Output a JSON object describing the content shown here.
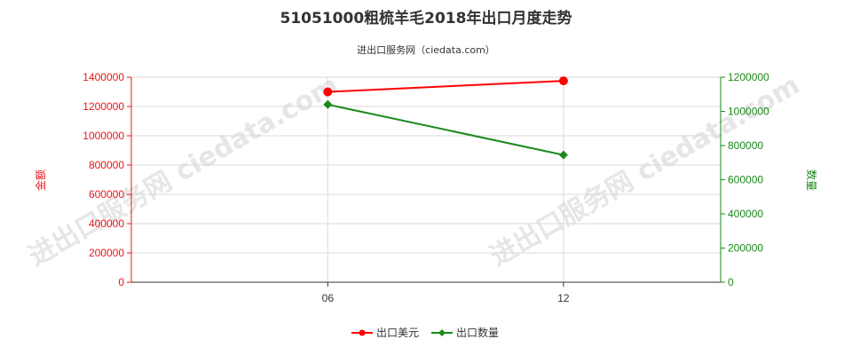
{
  "title": "51051000粗梳羊毛2018年出口月度走势",
  "subtitle": "进出口服务网（ciedata.com）",
  "watermark": "进出口服务网 ciedata.com",
  "colors": {
    "left_axis": "#e8161a",
    "right_axis": "#1a8a1a",
    "series_value": "#ff0000",
    "series_quantity": "#1a8a1a",
    "grid": "#d9d9d9"
  },
  "chart_data": {
    "type": "line",
    "title": "51051000粗梳羊毛2018年出口月度走势",
    "x": [
      "06",
      "12"
    ],
    "x_ticks": [
      "06",
      "12"
    ],
    "x_range": [
      1,
      16
    ],
    "x_positions": [
      6,
      12
    ],
    "grid": true,
    "legend_position": "bottom",
    "left_axis": {
      "label": "金额",
      "ylim": [
        0,
        1400000
      ],
      "ticks": [
        "0",
        "200000",
        "400000",
        "600000",
        "800000",
        "1000000",
        "1200000",
        "1400000"
      ]
    },
    "right_axis": {
      "label": "数量",
      "ylim": [
        0,
        1200000
      ],
      "ticks": [
        "0",
        "200000",
        "400000",
        "600000",
        "800000",
        "1000000",
        "1200000"
      ]
    },
    "series": [
      {
        "name": "出口美元",
        "axis": "left",
        "marker": "circle",
        "values": [
          1300000,
          1375000
        ]
      },
      {
        "name": "出口数量",
        "axis": "right",
        "marker": "diamond",
        "values": [
          1040000,
          745000
        ]
      }
    ]
  }
}
